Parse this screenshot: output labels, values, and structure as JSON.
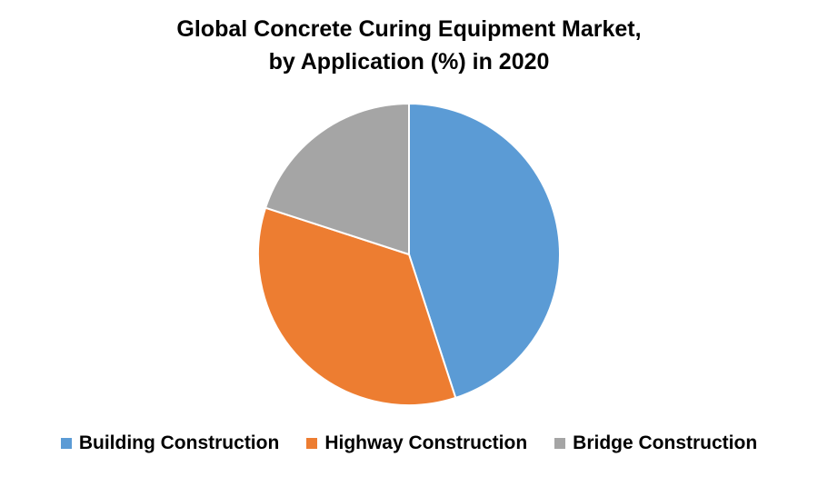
{
  "chart_data": {
    "type": "pie",
    "title_lines": [
      "Global Concrete Curing Equipment Market,",
      "by Application (%) in 2020"
    ],
    "categories": [
      "Building Construction",
      "Highway Construction",
      "Bridge Construction"
    ],
    "values": [
      45,
      35,
      20
    ],
    "colors": [
      "#5b9bd5",
      "#ed7d31",
      "#a5a5a5"
    ],
    "legend_position": "bottom"
  }
}
